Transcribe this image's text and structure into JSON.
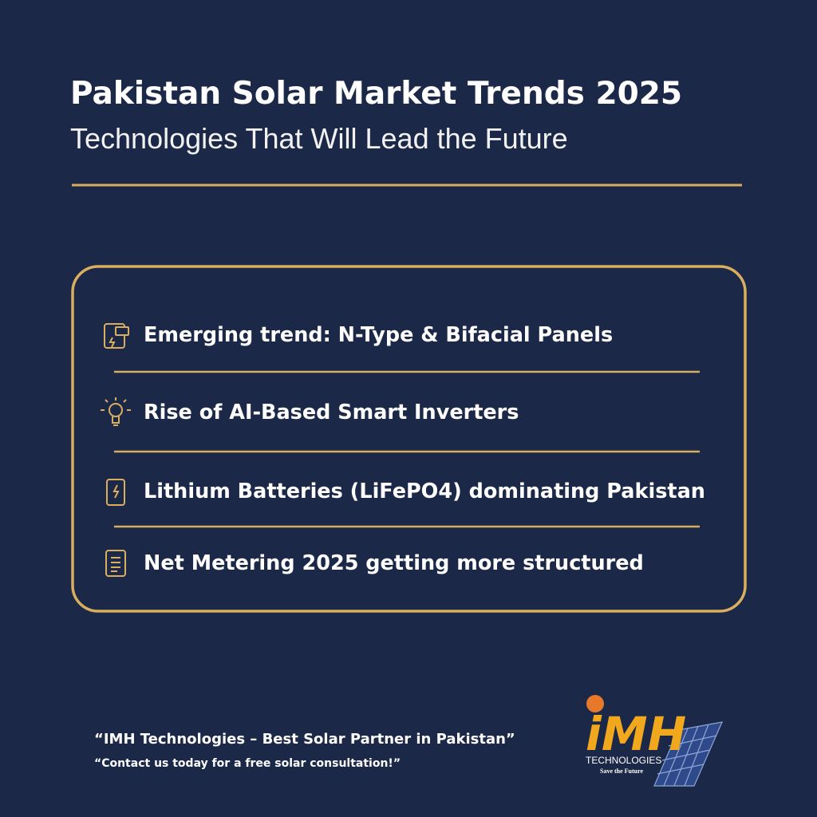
{
  "header": {
    "title": "Pakistan Solar Market Trends 2025",
    "subtitle": "Technologies That Will Lead the Future"
  },
  "items": [
    "Emerging trend: N-Type & Bifacial Panels",
    "Rise of AI-Based Smart Inverters",
    "Lithium Batteries (LiFePO4) dominating Pakistan",
    "Net Metering 2025 getting more structured"
  ],
  "footer": {
    "quote": "“IMH Technologies – Best Solar Partner in Pakistan”",
    "cta": "“Contact us today for a free solar consultation!”"
  },
  "logo": {
    "mark": "iMH",
    "name": "TECHNOLOGIES",
    "tagline": "Save the Future"
  }
}
